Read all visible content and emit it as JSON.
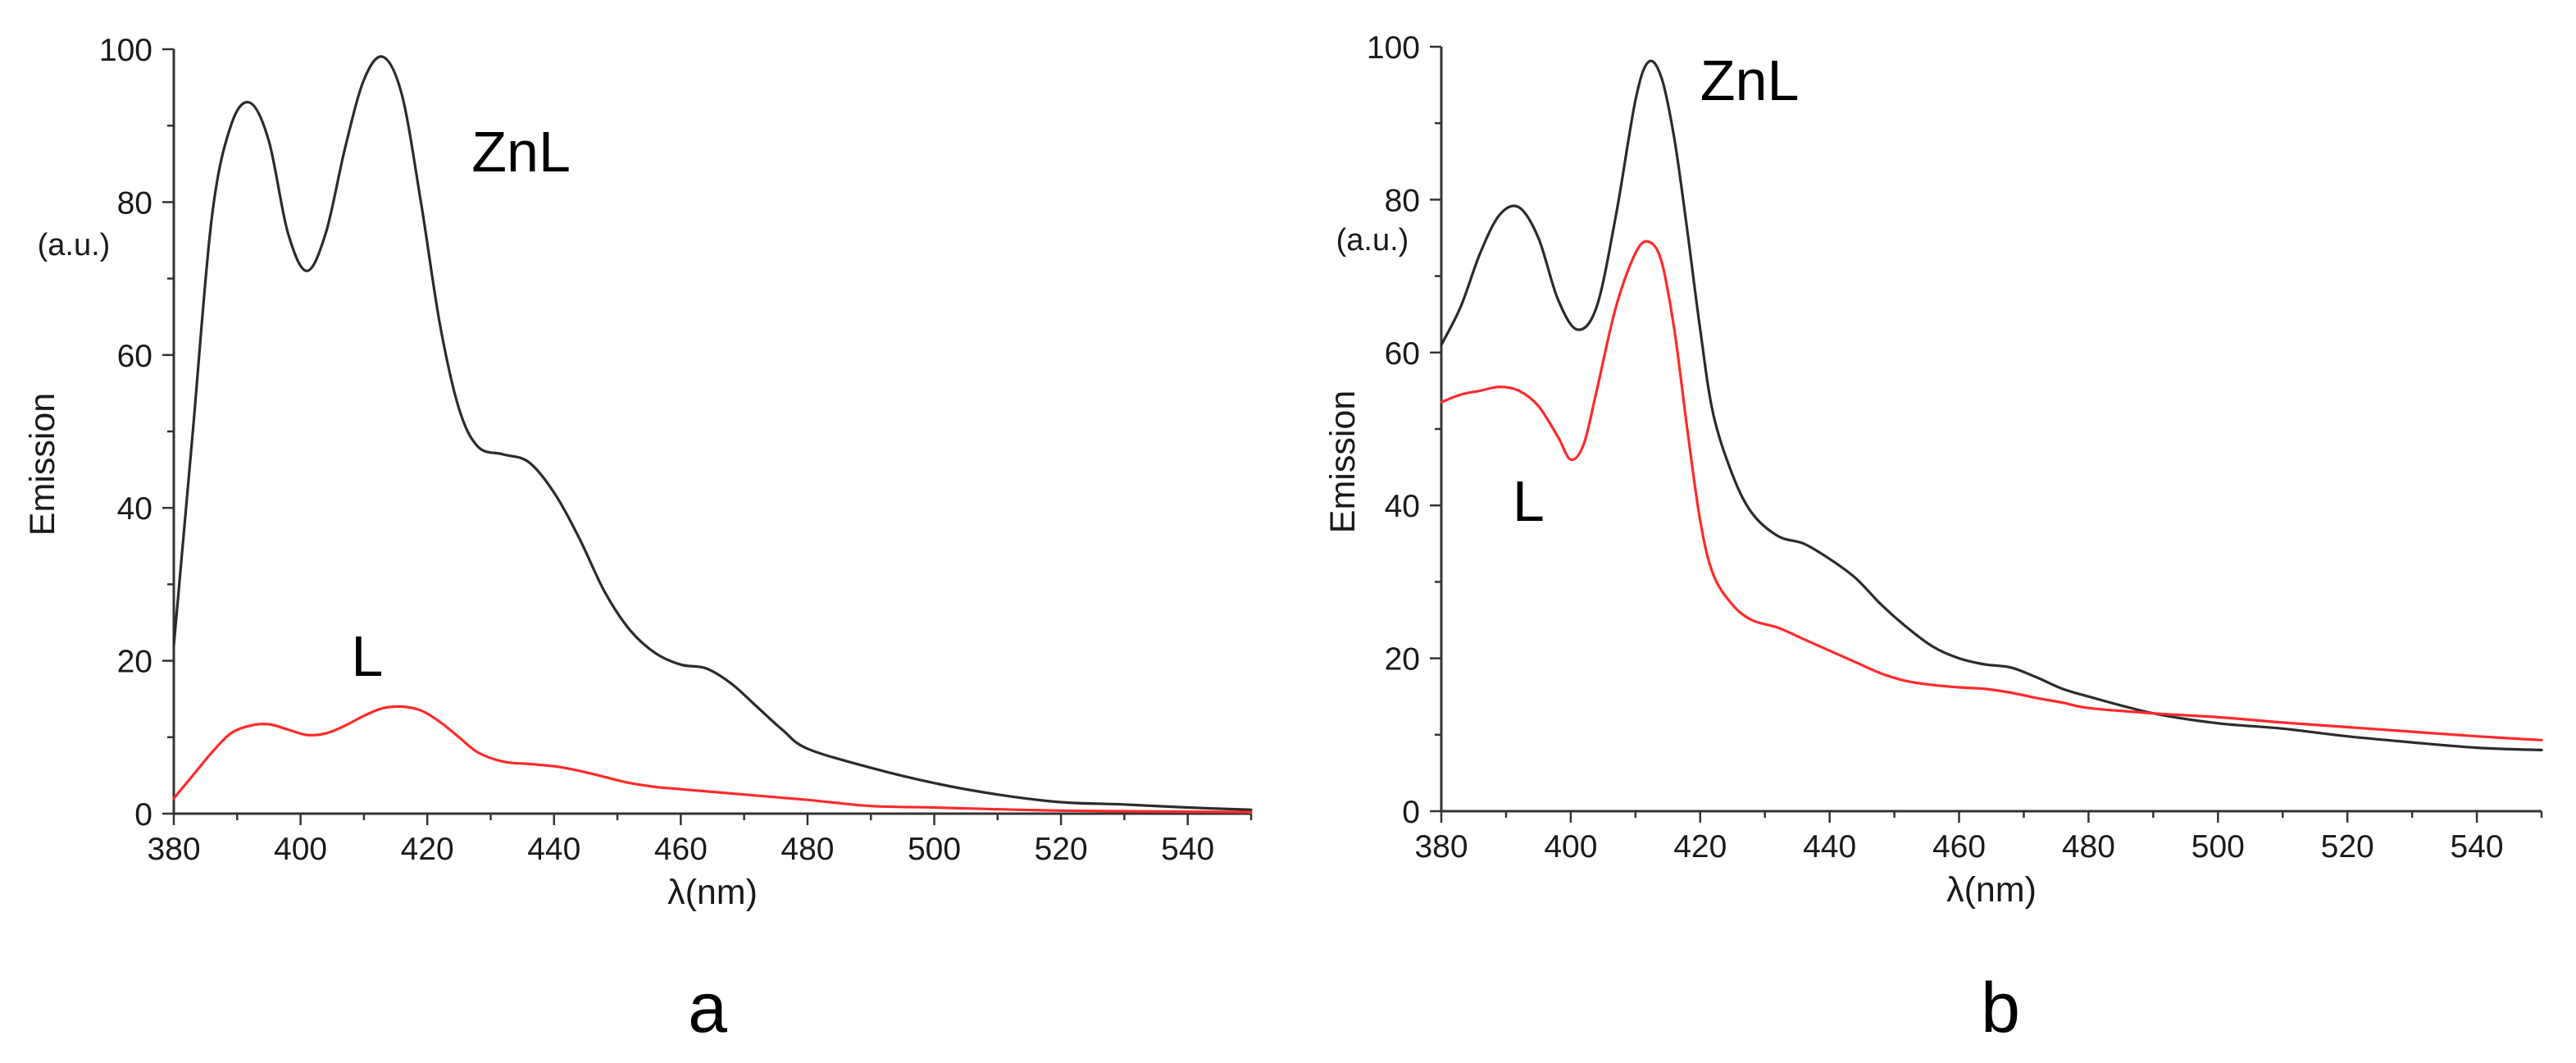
{
  "chart_data": [
    {
      "type": "line",
      "panel_label": "a",
      "title": "",
      "xlabel": "λ(nm)",
      "ylabel": "Emission",
      "yunit": "(a.u.)",
      "xlim": [
        380,
        550
      ],
      "ylim": [
        0,
        100
      ],
      "xticks": [
        380,
        400,
        420,
        440,
        460,
        480,
        500,
        520,
        540
      ],
      "yticks": [
        0,
        20,
        40,
        60,
        80,
        100
      ],
      "grid": false,
      "series": [
        {
          "name": "ZnL",
          "color": "#2b2b2b",
          "label_anchor": [
            427,
            84
          ],
          "x": [
            380,
            383,
            386,
            389,
            392,
            395,
            398,
            401,
            404,
            407,
            410,
            413,
            416,
            419,
            422,
            425,
            428,
            432,
            436,
            440,
            444,
            448,
            452,
            456,
            460,
            464,
            468,
            472,
            476,
            480,
            490,
            500,
            510,
            520,
            530,
            540,
            550
          ],
          "y": [
            22,
            50,
            78,
            90,
            93,
            88,
            76,
            71,
            76,
            87,
            96,
            99,
            94,
            80,
            64,
            53,
            48,
            47,
            46,
            42,
            36,
            29,
            24,
            21,
            19.5,
            19,
            17,
            14,
            11,
            8.5,
            6,
            4,
            2.5,
            1.5,
            1.2,
            0.8,
            0.5
          ]
        },
        {
          "name": "L",
          "color": "#ff2a2a",
          "label_anchor": [
            408,
            18
          ],
          "x": [
            380,
            383,
            386,
            389,
            392,
            395,
            398,
            401,
            404,
            407,
            410,
            413,
            416,
            419,
            422,
            425,
            428,
            432,
            436,
            440,
            444,
            448,
            452,
            456,
            460,
            470,
            480,
            490,
            500,
            520,
            550
          ],
          "y": [
            2,
            5,
            8,
            10.5,
            11.5,
            11.7,
            11,
            10.3,
            10.5,
            11.5,
            12.8,
            13.8,
            14,
            13.5,
            12,
            10,
            8,
            6.8,
            6.5,
            6.2,
            5.6,
            4.8,
            4,
            3.5,
            3.2,
            2.5,
            1.8,
            1,
            0.8,
            0.4,
            0.2
          ]
        }
      ]
    },
    {
      "type": "line",
      "panel_label": "b",
      "title": "",
      "xlabel": "λ(nm)",
      "ylabel": "Emission",
      "yunit": "(a.u.)",
      "xlim": [
        380,
        550
      ],
      "ylim": [
        0,
        100
      ],
      "xticks": [
        380,
        400,
        420,
        440,
        460,
        480,
        500,
        520,
        540
      ],
      "yticks": [
        0,
        20,
        40,
        60,
        80,
        100
      ],
      "grid": false,
      "series": [
        {
          "name": "ZnL",
          "color": "#2b2b2b",
          "label_anchor": [
            420,
            93
          ],
          "x": [
            380,
            383,
            386,
            389,
            392,
            395,
            398,
            401,
            404,
            407,
            410,
            412,
            414,
            416,
            418,
            420,
            422,
            425,
            428,
            432,
            436,
            440,
            444,
            448,
            452,
            456,
            460,
            464,
            468,
            472,
            476,
            480,
            490,
            500,
            510,
            520,
            530,
            540,
            550
          ],
          "y": [
            61,
            66,
            73,
            78,
            79,
            75,
            67,
            63,
            66,
            78,
            93,
            98,
            96,
            88,
            76,
            63,
            52,
            44,
            39,
            36,
            35,
            33,
            30.5,
            27,
            24,
            21.5,
            20,
            19.2,
            18.8,
            17.5,
            16,
            15,
            12.8,
            11.5,
            10.8,
            9.8,
            9,
            8.3,
            8
          ]
        },
        {
          "name": "L",
          "color": "#ff2a2a",
          "label_anchor": [
            391,
            38
          ],
          "x": [
            380,
            383,
            386,
            389,
            392,
            395,
            398,
            400,
            402,
            404,
            407,
            410,
            412,
            414,
            416,
            418,
            420,
            422,
            425,
            428,
            432,
            436,
            440,
            444,
            448,
            452,
            456,
            460,
            464,
            468,
            472,
            476,
            480,
            490,
            500,
            510,
            520,
            530,
            540,
            550
          ],
          "y": [
            53.5,
            54.5,
            55,
            55.5,
            55,
            53,
            49,
            46,
            48,
            55,
            66,
            73,
            74.5,
            72,
            63,
            50,
            38,
            31,
            27,
            25,
            24,
            22.5,
            21,
            19.5,
            18,
            17,
            16.5,
            16.2,
            16,
            15.5,
            14.8,
            14.2,
            13.5,
            12.8,
            12.3,
            11.6,
            11,
            10.4,
            9.8,
            9.3
          ]
        }
      ]
    }
  ]
}
